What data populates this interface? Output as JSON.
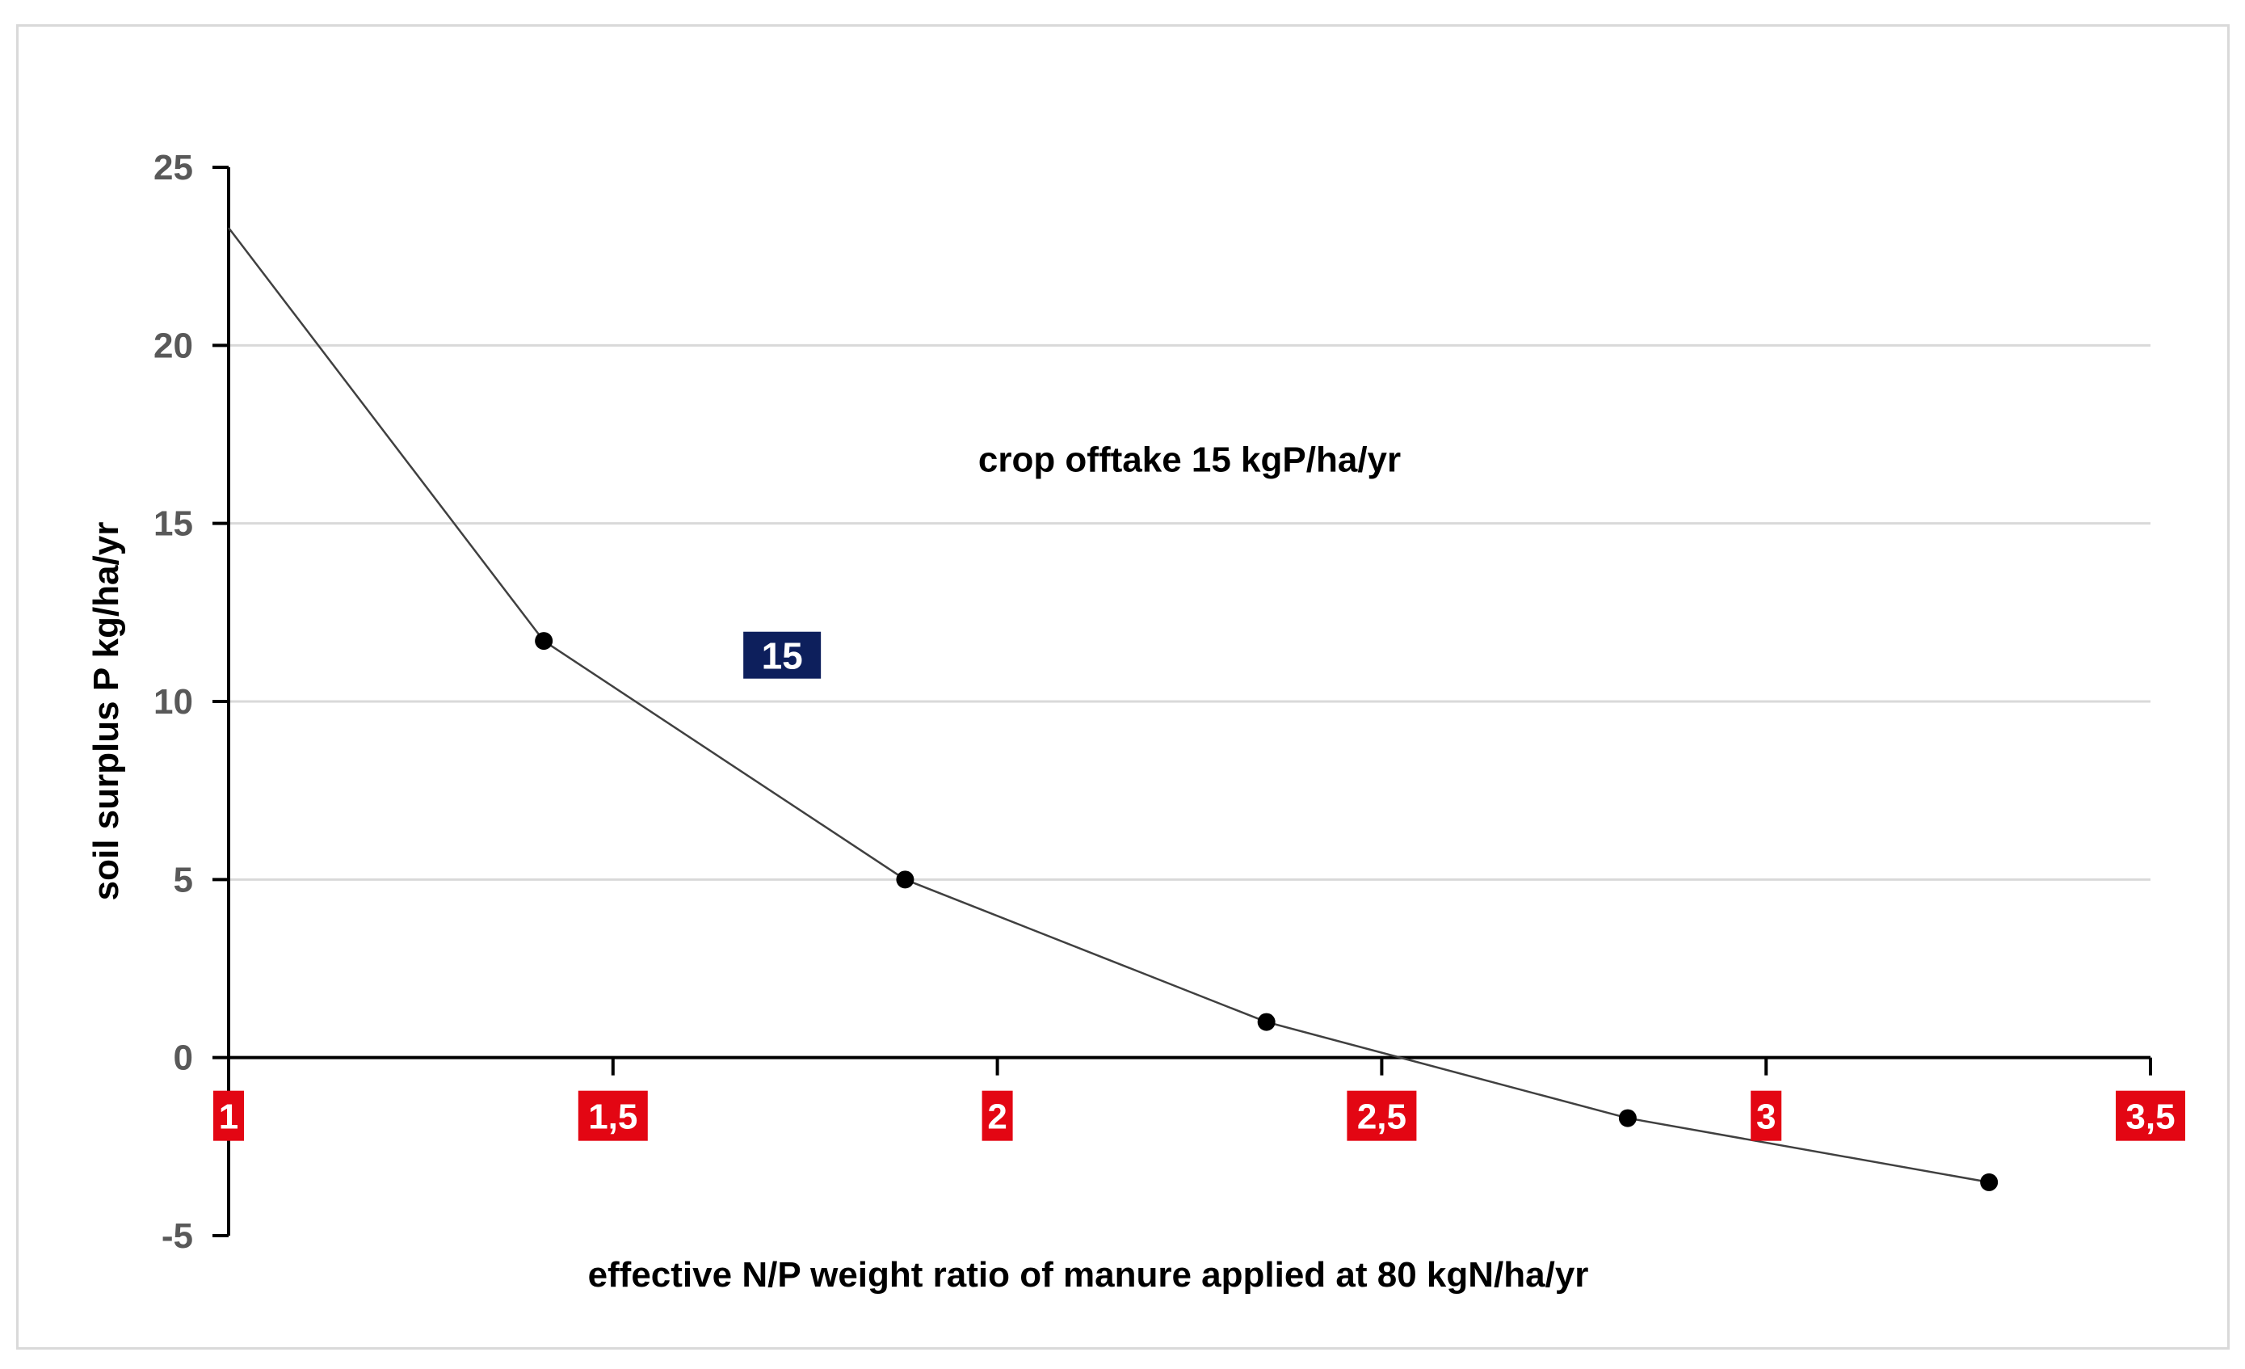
{
  "chart_data": {
    "type": "scatter",
    "title": "",
    "xlabel": "effective N/P weight ratio of manure applied at 80 kgN/ha/yr",
    "ylabel": "soil surplus P kg/ha/yr",
    "xlim": [
      1,
      3.5
    ],
    "ylim": [
      -5,
      25
    ],
    "x_ticks": [
      1,
      1.5,
      2,
      2.5,
      3,
      3.5
    ],
    "x_tick_labels": [
      "1",
      "1,5",
      "2",
      "2,5",
      "3",
      "3,5"
    ],
    "y_ticks": [
      -5,
      0,
      5,
      10,
      15,
      20,
      25
    ],
    "y_tick_labels": [
      "-5",
      "0",
      "5",
      "10",
      "15",
      "20",
      "25"
    ],
    "grid": "horizontal",
    "legend": "none",
    "series": [
      {
        "x": [
          1.0,
          1.41,
          1.88,
          2.35,
          2.82,
          3.29
        ],
        "y": [
          23.3,
          11.7,
          5.0,
          1.0,
          -1.7,
          -3.5
        ],
        "markers": [
          false,
          true,
          true,
          true,
          true,
          true
        ],
        "color": "#404040",
        "marker_color": "#000000"
      }
    ],
    "annotations": [
      {
        "text": "crop offtake 15 kgP/ha/yr",
        "x": 2.25,
        "y": 16.8
      },
      {
        "text": "15",
        "x": 1.72,
        "y": 11.3,
        "background": "#0d1f5c"
      }
    ],
    "x_label_background": "#e30613"
  }
}
